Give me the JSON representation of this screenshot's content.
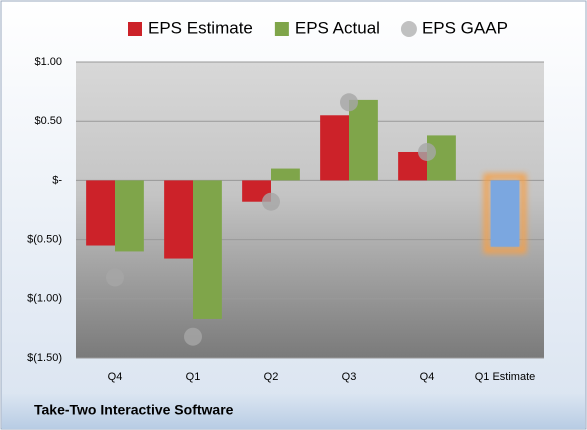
{
  "chart_data": {
    "type": "bar",
    "footer": "Take-Two Interactive Software",
    "categories": [
      "Q4",
      "Q1",
      "Q2",
      "Q3",
      "Q4",
      "Q1 Estimate"
    ],
    "series": [
      {
        "name": "EPS Estimate",
        "color": "#cc2229",
        "point_colors": [
          null,
          null,
          null,
          null,
          null,
          "#7ba7e0"
        ],
        "values": [
          -0.55,
          -0.66,
          -0.18,
          0.55,
          0.24,
          -0.56
        ]
      },
      {
        "name": "EPS Actual",
        "color": "#7fa54a",
        "values": [
          -0.6,
          -1.17,
          0.1,
          0.68,
          0.38,
          null
        ]
      },
      {
        "name": "EPS GAAP",
        "color": "#a6a6a6",
        "marker": "circle",
        "values": [
          -0.82,
          -1.32,
          -0.18,
          0.66,
          0.24,
          null
        ]
      }
    ],
    "ylim": [
      -1.5,
      1.0
    ],
    "yticks": [
      {
        "value": 1.0,
        "label": "$1.00"
      },
      {
        "value": 0.5,
        "label": "$0.50"
      },
      {
        "value": 0,
        "label": "$-"
      },
      {
        "value": -0.5,
        "label": "$(0.50)"
      },
      {
        "value": -1.0,
        "label": "$(1.00)"
      },
      {
        "value": -1.5,
        "label": "$(1.50)"
      }
    ],
    "grid": true
  }
}
